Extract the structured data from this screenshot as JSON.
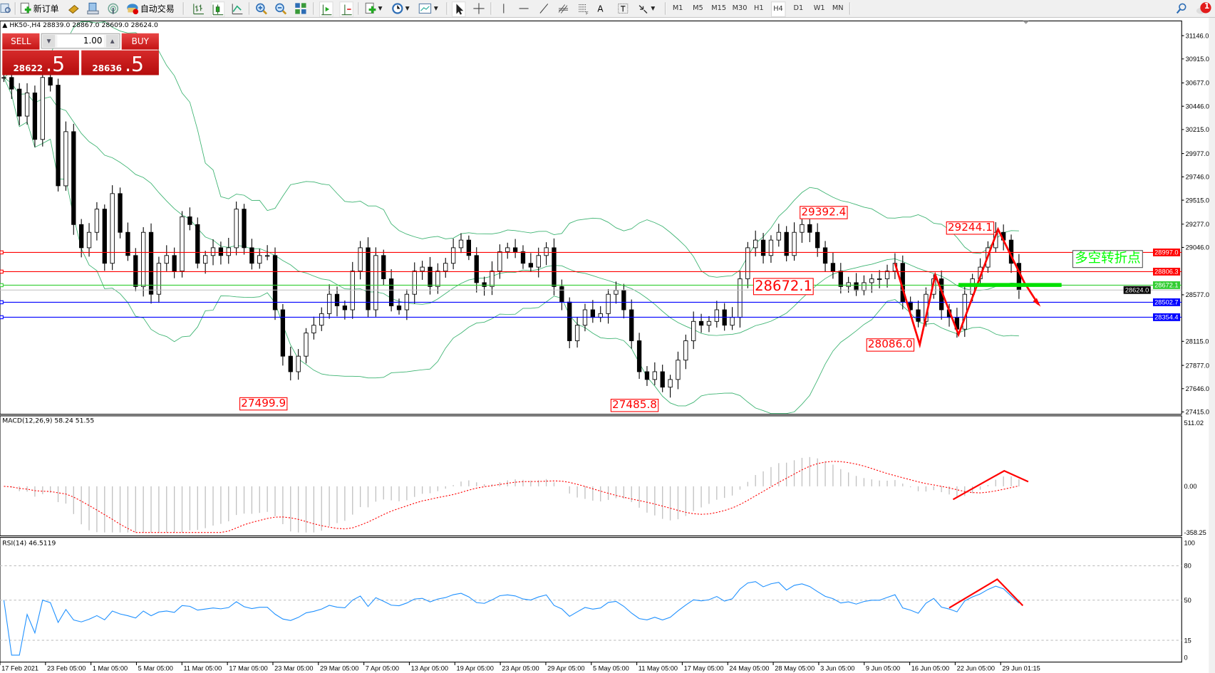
{
  "toolbar": {
    "new_order": "新订单",
    "auto_trading": "自动交易",
    "timeframes": [
      "M1",
      "M5",
      "M15",
      "M30",
      "H1",
      "H4",
      "D1",
      "W1",
      "MN"
    ],
    "active_timeframe": "H4",
    "notification_count": "1"
  },
  "chart_title": "HK50-,H4  28839.0 28867.0 28609.0 28624.0",
  "trade_panel": {
    "sell_label": "SELL",
    "buy_label": "BUY",
    "lot": "1.00",
    "sell_price_main": "28622",
    "sell_price_frac": ".5",
    "buy_price_main": "28636",
    "buy_price_frac": ".5",
    "color": "#cc1a1a"
  },
  "chart_data": [
    {
      "type": "candlestick",
      "symbol": "HK50-",
      "timeframe": "H4",
      "ylim": [
        27415.0,
        31146.0
      ],
      "y_ticks": [
        "31146.0",
        "30915.0",
        "30677.0",
        "30446.0",
        "30215.0",
        "29977.0",
        "29746.0",
        "29515.0",
        "29277.0",
        "29046.0",
        "28577.0",
        "28115.0",
        "27877.0",
        "27646.0",
        "27415.0"
      ],
      "x_ticks": [
        "17 Feb 2021",
        "23 Feb 05:00",
        "1 Mar 05:00",
        "5 Mar 05:00",
        "11 Mar 05:00",
        "17 Mar 05:00",
        "23 Mar 05:00",
        "29 Mar 05:00",
        "7 Apr 05:00",
        "13 Apr 05:00",
        "19 Apr 05:00",
        "23 Apr 05:00",
        "29 Apr 05:00",
        "5 May 05:00",
        "11 May 05:00",
        "17 May 05:00",
        "24 May 05:00",
        "28 May 05:00",
        "3 Jun 05:00",
        "9 Jun 05:00",
        "16 Jun 05:00",
        "22 Jun 05:00",
        "29 Jun 01:15"
      ],
      "close": [
        30731,
        30616,
        30348,
        30578,
        30117,
        30731,
        30655,
        29657,
        30194,
        29273,
        29043,
        29196,
        29426,
        28889,
        29580,
        29196,
        28966,
        28659,
        29196,
        28582,
        28889,
        28966,
        28812,
        29350,
        29273,
        28889,
        28966,
        29043,
        28966,
        29043,
        29426,
        29043,
        28889,
        28966,
        28966,
        28428,
        27968,
        27814,
        27968,
        28198,
        28275,
        28390,
        28582,
        28467,
        28428,
        28812,
        29043,
        28428,
        28966,
        28735,
        28467,
        28428,
        28582,
        28812,
        28851,
        28659,
        28812,
        28889,
        29043,
        29119,
        28966,
        28697,
        28659,
        28812,
        29004,
        29043,
        29004,
        28889,
        28851,
        28966,
        29043,
        28659,
        28505,
        28121,
        28275,
        28428,
        28352,
        28390,
        28582,
        28620,
        28428,
        28121,
        27814,
        27737,
        27814,
        27661,
        27737,
        27929,
        28121,
        28313,
        28275,
        28313,
        28428,
        28275,
        28352,
        28735,
        29043,
        29119,
        28966,
        29119,
        29196,
        28966,
        29196,
        29273,
        29196,
        29043,
        28889,
        28812,
        28659,
        28697,
        28620,
        28697,
        28735,
        28735,
        28812,
        28889,
        28505,
        28428,
        28313,
        28582,
        28735,
        28428,
        28352,
        28236,
        28582,
        28735,
        28851,
        29043,
        29196,
        29119,
        28889,
        28624
      ],
      "overlay": "Bollinger Bands",
      "bands_color": "#3cb371",
      "horizontal_lines": [
        {
          "price": "28997.0",
          "color": "#ff0000"
        },
        {
          "price": "28806.3",
          "color": "#ff0000"
        },
        {
          "price": "28672.1",
          "color": "#32cd32"
        },
        {
          "price": "28624.0",
          "color": "#c0c0c0",
          "label_bg": "#000000"
        },
        {
          "price": "28502.7",
          "color": "#0000ff"
        },
        {
          "price": "28354.4",
          "color": "#0000ff"
        }
      ],
      "annotations": {
        "high_1": "29392.4",
        "high_2": "29244.1",
        "mid": "28672.1",
        "low_recent": "28086.0",
        "low_1": "27499.9",
        "low_2": "27485.8",
        "text_box": "多空转折点",
        "text_box_color": "#00ff00",
        "arrow_color": "#ff0000"
      }
    },
    {
      "type": "histogram+line",
      "label": "MACD(12,26,9) 58.24 51.55",
      "ylim": [
        -358.25,
        511.02
      ],
      "y_ticks": [
        "511.02",
        "0.00",
        "-358.25"
      ],
      "histogram_color": "#c0c0c0",
      "signal_color": "#ff0000"
    },
    {
      "type": "line",
      "label": "RSI(14) 46.5119",
      "ylim": [
        0,
        100
      ],
      "y_ticks": [
        "100",
        "80",
        "50",
        "15",
        "0"
      ],
      "levels": [
        80,
        50,
        15
      ],
      "color": "#1e90ff"
    }
  ]
}
